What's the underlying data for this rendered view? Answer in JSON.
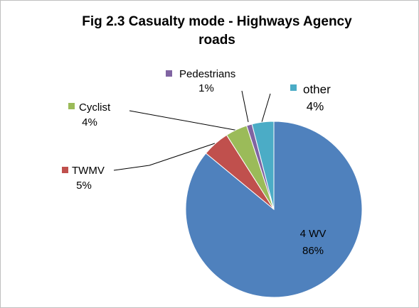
{
  "chart_data": {
    "type": "pie",
    "title": "Fig 2.3 Casualty mode - Highways Agency roads",
    "categories": [
      "4 WV",
      "TWMV",
      "Cyclist",
      "Pedestrians",
      "other"
    ],
    "values": [
      86,
      5,
      4,
      1,
      4
    ],
    "value_labels": [
      "86%",
      "5%",
      "4%",
      "1%",
      "4%"
    ],
    "colors": [
      "#4f81bd",
      "#c0504d",
      "#9bbb59",
      "#8064a2",
      "#4bacc6"
    ]
  }
}
